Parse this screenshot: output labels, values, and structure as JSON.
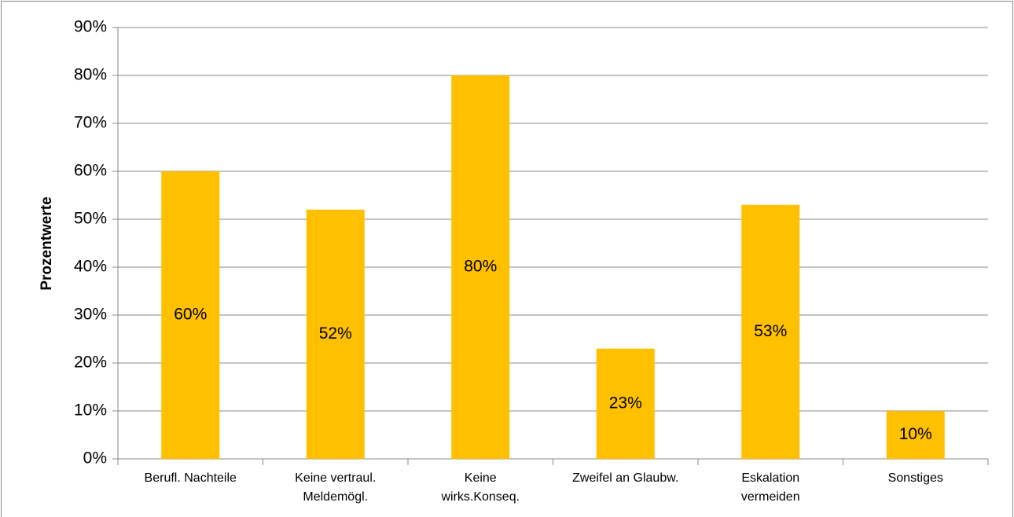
{
  "chart_data": {
    "type": "bar",
    "ylabel": "Prozentwerte",
    "categories": [
      [
        "Berufl. Nachteile"
      ],
      [
        "Keine vertraul.",
        "Meldemögl."
      ],
      [
        "Keine",
        "wirks.Konseq."
      ],
      [
        "Zweifel an Glaubw."
      ],
      [
        "Eskalation",
        "vermeiden"
      ],
      [
        "Sonstiges"
      ]
    ],
    "values": [
      60,
      52,
      80,
      23,
      53,
      10
    ],
    "value_labels": [
      "60%",
      "52%",
      "80%",
      "23%",
      "53%",
      "10%"
    ],
    "color": "#ffc000",
    "ylim": [
      0,
      90
    ],
    "yticks": [
      {
        "value": 0,
        "label": "0%"
      },
      {
        "value": 10,
        "label": "10%"
      },
      {
        "value": 20,
        "label": "20%"
      },
      {
        "value": 30,
        "label": "30%"
      },
      {
        "value": 40,
        "label": "40%"
      },
      {
        "value": 50,
        "label": "50%"
      },
      {
        "value": 60,
        "label": "60%"
      },
      {
        "value": 70,
        "label": "70%"
      },
      {
        "value": 80,
        "label": "80%"
      },
      {
        "value": 90,
        "label": "90%"
      }
    ],
    "grid": true
  }
}
